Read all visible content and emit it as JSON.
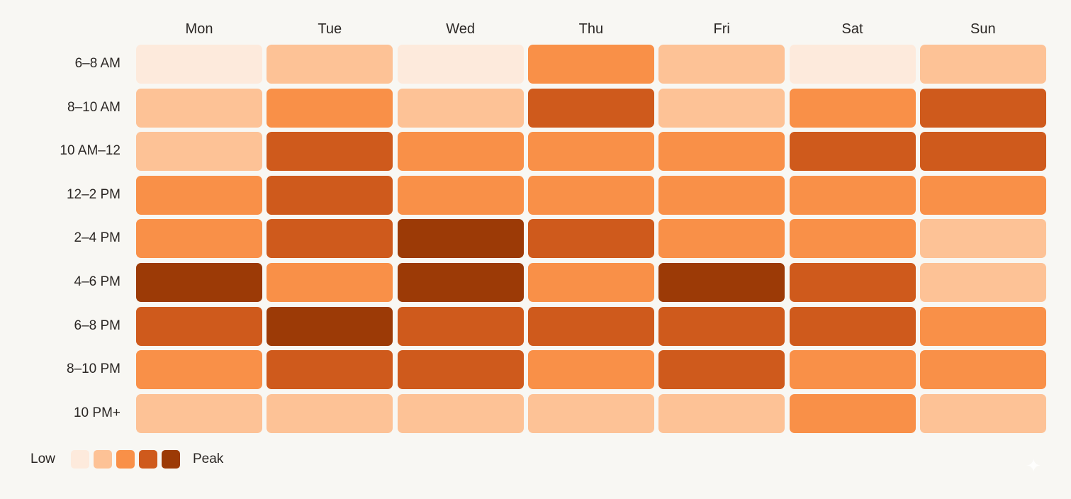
{
  "chart_data": {
    "type": "heatmap",
    "columns": [
      "Mon",
      "Tue",
      "Wed",
      "Thu",
      "Fri",
      "Sat",
      "Sun"
    ],
    "rows": [
      "6–8 AM",
      "8–10 AM",
      "10 AM–12",
      "12–2 PM",
      "2–4 PM",
      "4–6 PM",
      "6–8 PM",
      "8–10 PM",
      "10 PM+"
    ],
    "levels": [
      [
        0,
        1,
        0,
        2,
        1,
        0,
        1
      ],
      [
        1,
        2,
        1,
        3,
        1,
        2,
        3
      ],
      [
        1,
        3,
        2,
        2,
        2,
        3,
        3
      ],
      [
        2,
        3,
        2,
        2,
        2,
        2,
        2
      ],
      [
        2,
        3,
        4,
        3,
        2,
        2,
        1
      ],
      [
        4,
        2,
        4,
        2,
        4,
        3,
        1
      ],
      [
        3,
        4,
        3,
        3,
        3,
        3,
        2
      ],
      [
        2,
        3,
        3,
        2,
        3,
        2,
        2
      ],
      [
        1,
        1,
        1,
        1,
        1,
        2,
        1
      ]
    ],
    "scale": {
      "low_label": "Low",
      "high_label": "Peak",
      "colors": [
        "#fdeadc",
        "#fdc296",
        "#f99048",
        "#cf5a1c",
        "#9c3a06"
      ]
    }
  }
}
